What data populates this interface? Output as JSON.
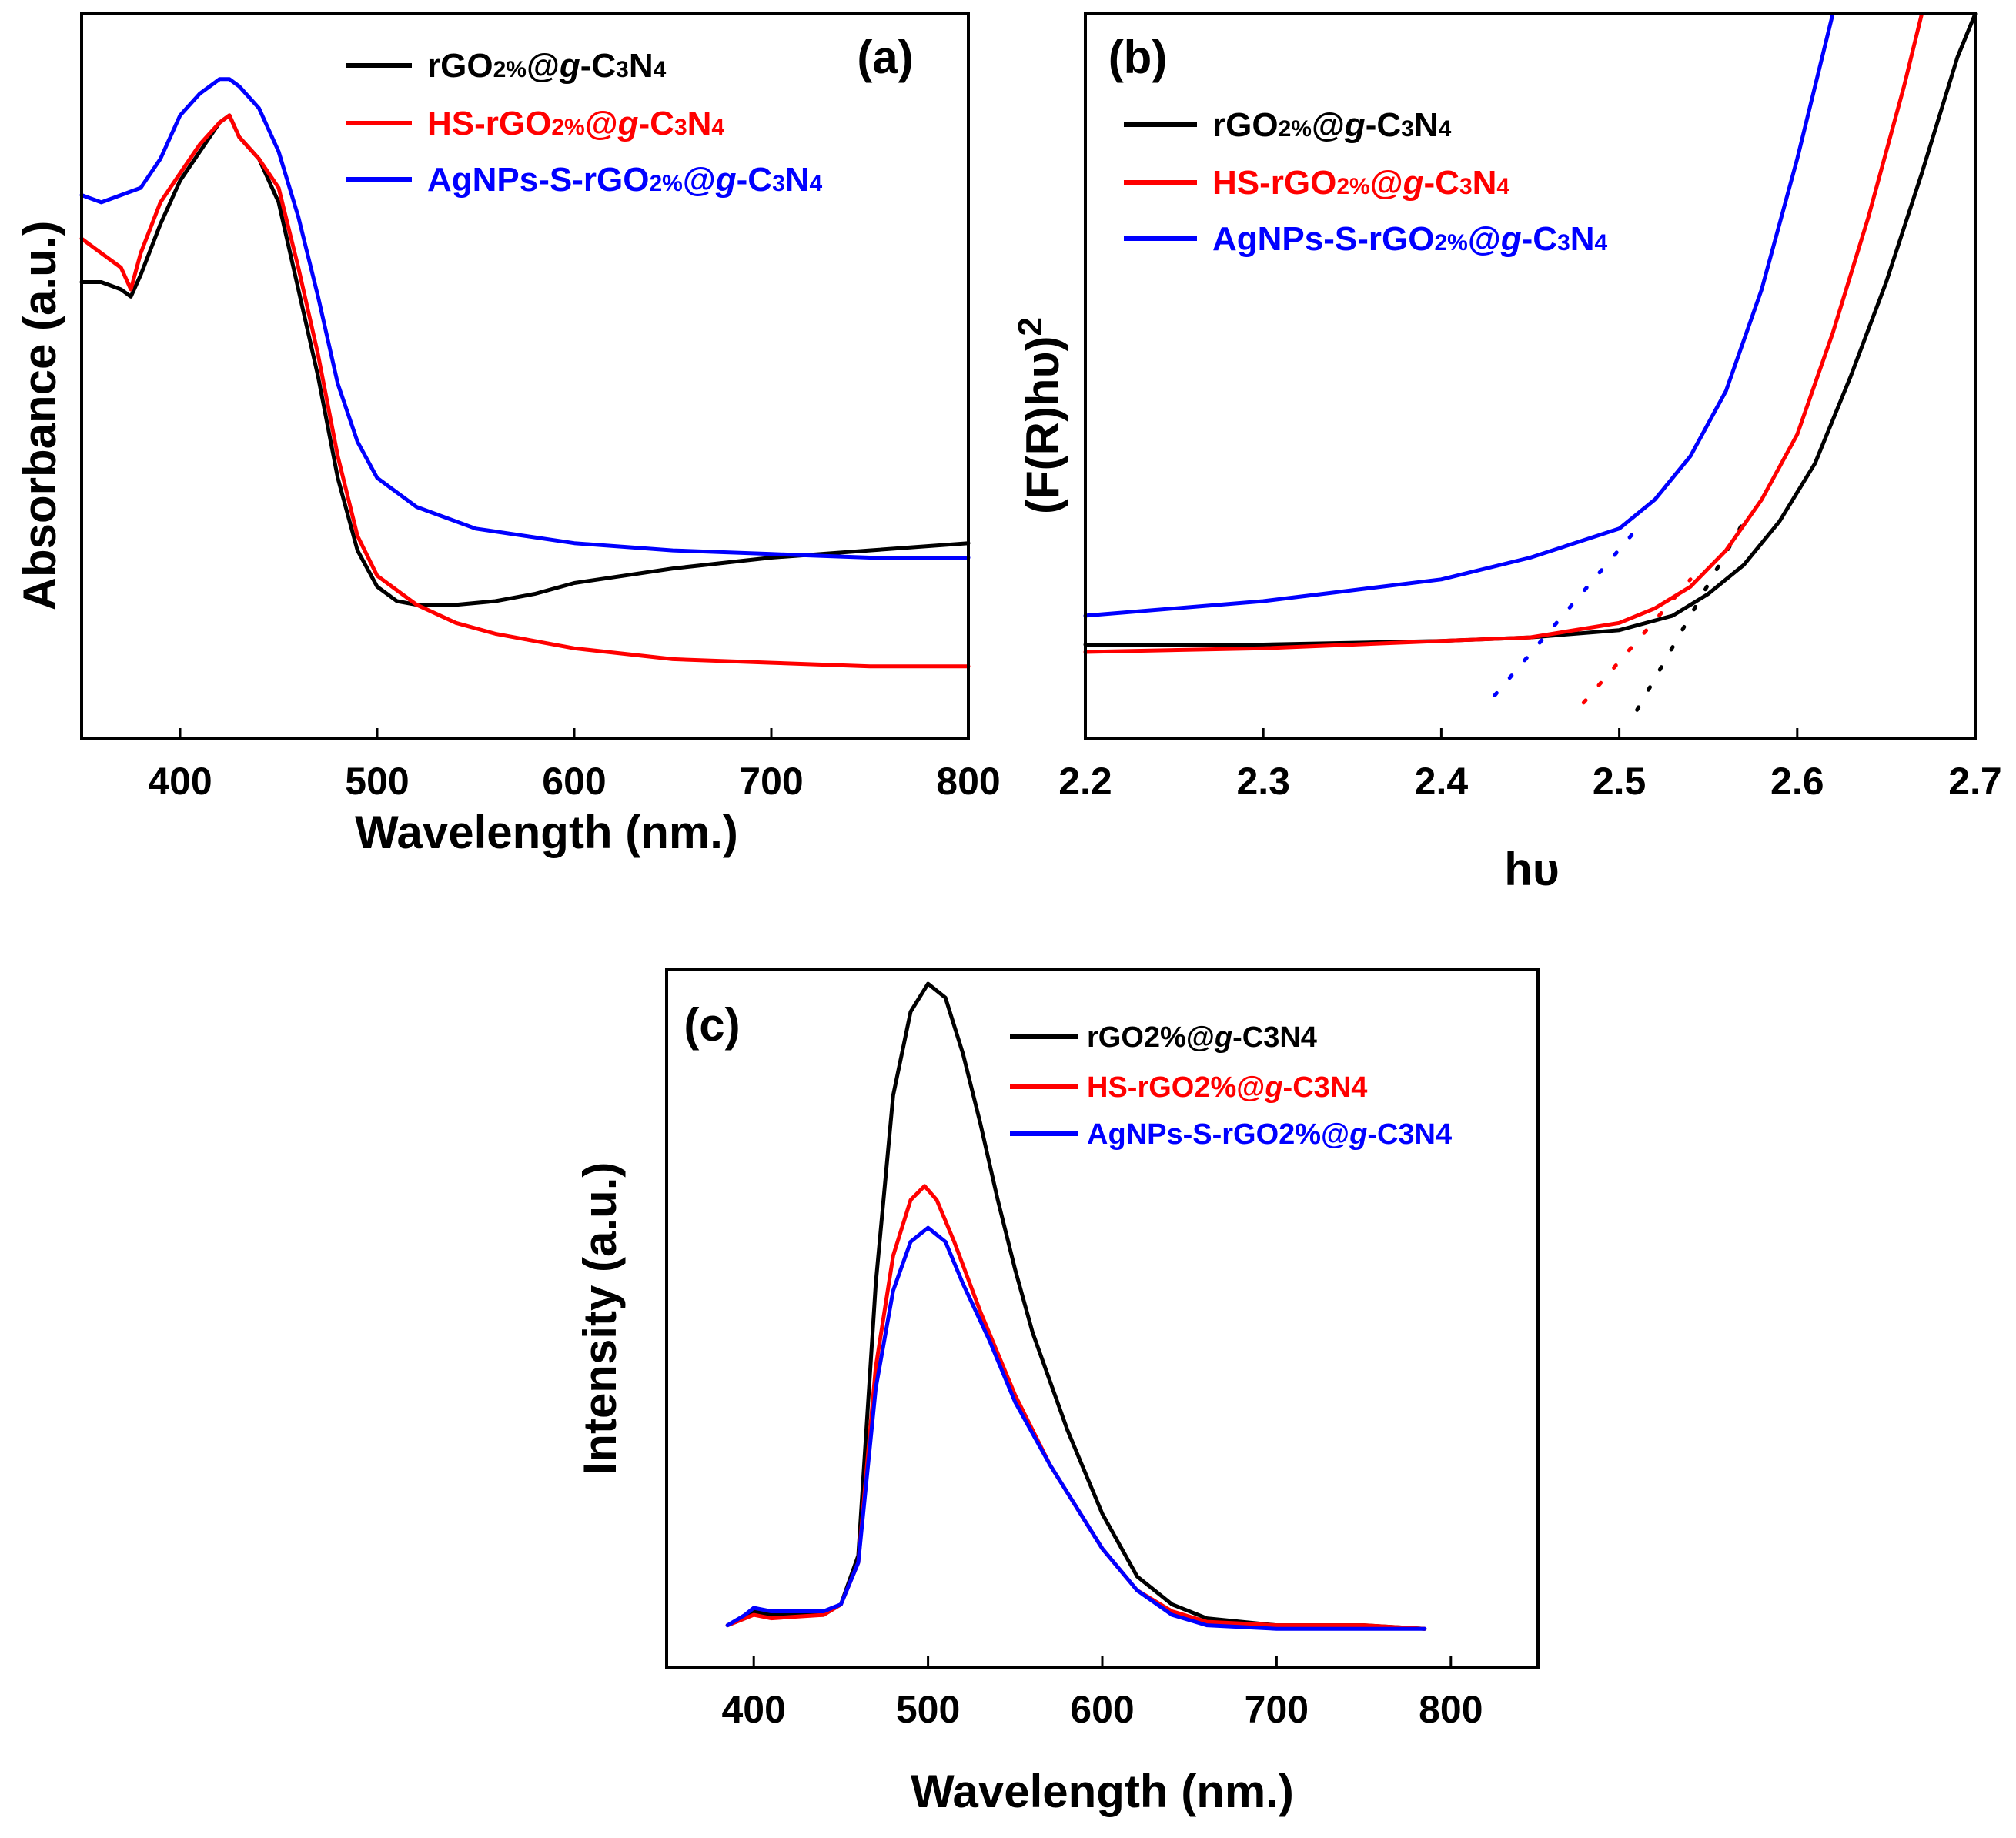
{
  "colors": {
    "black": "#000000",
    "red": "#ff0000",
    "blue": "#0000ff"
  },
  "chart_data": [
    {
      "panel": "(a)",
      "type": "line",
      "title": "",
      "xlabel": "Wavelength (nm.)",
      "ylabel": "Absorbance (a.u.)",
      "xlim": [
        350,
        800
      ],
      "ylim": [
        0,
        1
      ],
      "xticks": [
        400,
        500,
        600,
        700,
        800
      ],
      "grid": false,
      "legend_position": "top-right",
      "series": [
        {
          "name": "rGO2%@g-C3N4",
          "legend": {
            "a": "rGO",
            "sub": "2%",
            "b": "@",
            "it": "g",
            "c": "-C",
            "sub2": "3",
            "d": "N",
            "sub3": "4"
          },
          "color": "#000000",
          "x": [
            350,
            360,
            370,
            375,
            380,
            390,
            400,
            410,
            420,
            425,
            430,
            440,
            450,
            460,
            470,
            480,
            490,
            500,
            510,
            520,
            540,
            560,
            580,
            600,
            650,
            700,
            750,
            800
          ],
          "y": [
            0.63,
            0.63,
            0.62,
            0.61,
            0.64,
            0.71,
            0.77,
            0.81,
            0.85,
            0.86,
            0.83,
            0.8,
            0.74,
            0.62,
            0.5,
            0.36,
            0.26,
            0.21,
            0.19,
            0.185,
            0.185,
            0.19,
            0.2,
            0.215,
            0.235,
            0.25,
            0.26,
            0.27
          ]
        },
        {
          "name": "HS-rGO2%@g-C3N4",
          "legend": {
            "a": "HS-rGO",
            "sub": "2%",
            "b": "@",
            "it": "g",
            "c": "-C",
            "sub2": "3",
            "d": "N",
            "sub3": "4"
          },
          "color": "#ff0000",
          "x": [
            350,
            360,
            370,
            375,
            380,
            390,
            400,
            410,
            420,
            425,
            430,
            440,
            450,
            460,
            470,
            480,
            490,
            500,
            520,
            540,
            560,
            600,
            650,
            700,
            750,
            800
          ],
          "y": [
            0.69,
            0.67,
            0.65,
            0.62,
            0.67,
            0.74,
            0.78,
            0.82,
            0.85,
            0.86,
            0.83,
            0.8,
            0.76,
            0.65,
            0.53,
            0.39,
            0.28,
            0.225,
            0.185,
            0.16,
            0.145,
            0.125,
            0.11,
            0.105,
            0.1,
            0.1
          ]
        },
        {
          "name": "AgNPs-S-rGO2%@g-C3N4",
          "legend": {
            "a": "AgNPs-S-rGO",
            "sub": "2%",
            "b": "@",
            "it": "g",
            "c": "-C",
            "sub2": "3",
            "d": "N",
            "sub3": "4"
          },
          "color": "#0000ff",
          "x": [
            350,
            360,
            370,
            380,
            390,
            400,
            410,
            420,
            425,
            430,
            440,
            450,
            460,
            470,
            480,
            490,
            500,
            520,
            550,
            600,
            650,
            700,
            750,
            800
          ],
          "y": [
            0.75,
            0.74,
            0.75,
            0.76,
            0.8,
            0.86,
            0.89,
            0.91,
            0.91,
            0.9,
            0.87,
            0.81,
            0.72,
            0.61,
            0.49,
            0.41,
            0.36,
            0.32,
            0.29,
            0.27,
            0.26,
            0.255,
            0.25,
            0.25
          ]
        }
      ]
    },
    {
      "panel": "(b)",
      "type": "line",
      "title": "",
      "xlabel": "hυ",
      "ylabel": "(F(R)hυ)2",
      "xlim": [
        2.2,
        2.7
      ],
      "ylim": [
        0,
        1
      ],
      "xticks": [
        2.2,
        2.3,
        2.4,
        2.5,
        2.6,
        2.7
      ],
      "grid": false,
      "legend_position": "top-left",
      "series": [
        {
          "name": "rGO2%@g-C3N4",
          "legend": {
            "a": "rGO",
            "sub": "2%",
            "b": "@",
            "it": "g",
            "c": "-C",
            "sub2": "3",
            "d": "N",
            "sub3": "4"
          },
          "color": "#000000",
          "x": [
            2.2,
            2.3,
            2.4,
            2.45,
            2.5,
            2.53,
            2.55,
            2.57,
            2.59,
            2.61,
            2.63,
            2.65,
            2.67,
            2.69,
            2.7
          ],
          "y": [
            0.13,
            0.13,
            0.135,
            0.14,
            0.15,
            0.17,
            0.2,
            0.24,
            0.3,
            0.38,
            0.5,
            0.63,
            0.78,
            0.94,
            1.0
          ]
        },
        {
          "name": "HS-rGO2%@g-C3N4",
          "legend": {
            "a": "HS-rGO",
            "sub": "2%",
            "b": "@",
            "it": "g",
            "c": "-C",
            "sub2": "3",
            "d": "N",
            "sub3": "4"
          },
          "color": "#ff0000",
          "x": [
            2.2,
            2.3,
            2.4,
            2.45,
            2.5,
            2.52,
            2.54,
            2.56,
            2.58,
            2.6,
            2.62,
            2.64,
            2.66,
            2.67
          ],
          "y": [
            0.12,
            0.125,
            0.135,
            0.14,
            0.16,
            0.18,
            0.21,
            0.26,
            0.33,
            0.42,
            0.56,
            0.72,
            0.9,
            1.0
          ]
        },
        {
          "name": "AgNPs-S-rGO2%@g-C3N4",
          "legend": {
            "a": "AgNPs-S-rGO",
            "sub": "2%",
            "b": "@",
            "it": "g",
            "c": "-C",
            "sub2": "3",
            "d": "N",
            "sub3": "4"
          },
          "color": "#0000ff",
          "x": [
            2.2,
            2.3,
            2.4,
            2.45,
            2.5,
            2.52,
            2.54,
            2.56,
            2.58,
            2.6,
            2.61,
            2.62
          ],
          "y": [
            0.17,
            0.19,
            0.22,
            0.25,
            0.29,
            0.33,
            0.39,
            0.48,
            0.62,
            0.8,
            0.9,
            1.0
          ]
        }
      ],
      "extrapolations": [
        {
          "series": "rGO2%@g-C3N4",
          "color": "#000000",
          "x": [
            2.51,
            2.57
          ],
          "y": [
            0.04,
            0.3
          ]
        },
        {
          "series": "HS-rGO2%@g-C3N4",
          "color": "#ff0000",
          "x": [
            2.48,
            2.54
          ],
          "y": [
            0.05,
            0.22
          ]
        },
        {
          "series": "AgNPs-S-rGO2%@g-C3N4",
          "color": "#0000ff",
          "x": [
            2.43,
            2.51
          ],
          "y": [
            0.06,
            0.29
          ]
        }
      ]
    },
    {
      "panel": "(c)",
      "type": "line",
      "title": "",
      "xlabel": "Wavelength (nm.)",
      "ylabel": "Intensity (a.u.)",
      "xlim": [
        350,
        850
      ],
      "ylim": [
        0,
        1
      ],
      "xticks": [
        400,
        500,
        600,
        700,
        800
      ],
      "grid": false,
      "legend_position": "top-right",
      "series": [
        {
          "name": "rGO2%@g-C3N4",
          "legend": {
            "a": "rGO2%@",
            "it": "g",
            "c": "-C3N4"
          },
          "color": "#000000",
          "x": [
            385,
            395,
            400,
            410,
            440,
            450,
            460,
            470,
            480,
            490,
            500,
            510,
            520,
            530,
            540,
            550,
            560,
            580,
            600,
            620,
            640,
            660,
            700,
            750,
            785
          ],
          "y": [
            0.06,
            0.07,
            0.08,
            0.075,
            0.075,
            0.09,
            0.16,
            0.55,
            0.82,
            0.94,
            0.98,
            0.96,
            0.88,
            0.78,
            0.67,
            0.57,
            0.48,
            0.34,
            0.22,
            0.13,
            0.09,
            0.07,
            0.06,
            0.06,
            0.055
          ]
        },
        {
          "name": "HS-rGO2%@g-C3N4",
          "legend": {
            "a": "HS-rGO2%@",
            "it": "g",
            "c": "-C3N4"
          },
          "color": "#ff0000",
          "x": [
            385,
            395,
            400,
            410,
            440,
            450,
            460,
            470,
            480,
            490,
            498,
            505,
            515,
            530,
            550,
            570,
            600,
            620,
            640,
            660,
            700,
            750,
            785
          ],
          "y": [
            0.06,
            0.07,
            0.075,
            0.07,
            0.075,
            0.09,
            0.15,
            0.43,
            0.59,
            0.67,
            0.69,
            0.67,
            0.61,
            0.51,
            0.39,
            0.29,
            0.17,
            0.11,
            0.08,
            0.065,
            0.06,
            0.06,
            0.055
          ]
        },
        {
          "name": "AgNPs-S-rGO2%@g-C3N4",
          "legend": {
            "a": "AgNPs-S-rGO2%@",
            "it": "g",
            "c": "-C3N4"
          },
          "color": "#0000ff",
          "x": [
            385,
            395,
            400,
            410,
            440,
            450,
            460,
            470,
            480,
            490,
            500,
            510,
            520,
            535,
            550,
            570,
            600,
            620,
            640,
            660,
            700,
            750,
            785
          ],
          "y": [
            0.06,
            0.075,
            0.085,
            0.08,
            0.08,
            0.09,
            0.15,
            0.4,
            0.54,
            0.61,
            0.63,
            0.61,
            0.55,
            0.47,
            0.38,
            0.29,
            0.17,
            0.11,
            0.075,
            0.06,
            0.055,
            0.055,
            0.055
          ]
        }
      ]
    }
  ]
}
